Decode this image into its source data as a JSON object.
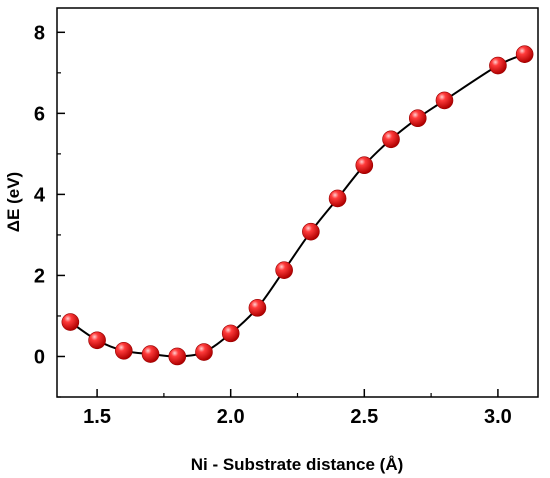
{
  "chart_data": {
    "type": "line",
    "xlabel": "Ni - Substrate distance (Å)",
    "ylabel": "ΔE (eV)",
    "xlim": [
      1.35,
      3.15
    ],
    "ylim": [
      -1.0,
      8.6
    ],
    "xticks": [
      "1.5",
      "2.0",
      "2.5",
      "3.0"
    ],
    "yticks": [
      "0",
      "2",
      "4",
      "6",
      "8"
    ],
    "grid": false,
    "series": [
      {
        "marker_color": "#e8141a",
        "line_color": "#000000",
        "x": [
          1.4,
          1.5,
          1.6,
          1.7,
          1.8,
          1.9,
          2.0,
          2.1,
          2.2,
          2.3,
          2.4,
          2.5,
          2.6,
          2.7,
          2.8,
          3.0,
          3.1
        ],
        "y": [
          0.85,
          0.4,
          0.14,
          0.06,
          0.0,
          0.11,
          0.57,
          1.2,
          2.13,
          3.08,
          3.9,
          4.72,
          5.36,
          5.88,
          6.32,
          7.18,
          7.46
        ]
      }
    ]
  }
}
